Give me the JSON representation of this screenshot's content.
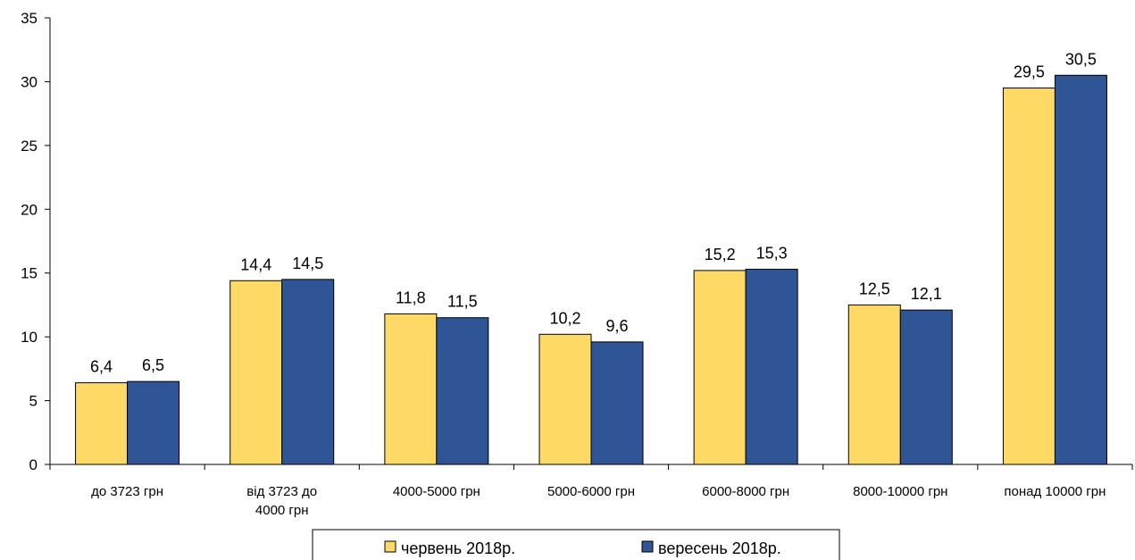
{
  "chart_data": {
    "type": "bar",
    "categories": [
      [
        "до 3723 грн"
      ],
      [
        "від 3723 до",
        "4000 грн"
      ],
      [
        "4000-5000 грн"
      ],
      [
        "5000-6000 грн"
      ],
      [
        "6000-8000 грн"
      ],
      [
        "8000-10000 грн"
      ],
      [
        "понад 10000 грн"
      ]
    ],
    "series": [
      {
        "name": "червень 2018р.",
        "color": "#FFD966",
        "values": [
          6.4,
          14.4,
          11.8,
          10.2,
          15.2,
          12.5,
          29.5
        ],
        "labels": [
          "6,4",
          "14,4",
          "11,8",
          "10,2",
          "15,2",
          "12,5",
          "29,5"
        ]
      },
      {
        "name": "вересень 2018р.",
        "color": "#2F5597",
        "values": [
          6.5,
          14.5,
          11.5,
          9.6,
          15.3,
          12.1,
          30.5
        ],
        "labels": [
          "6,5",
          "14,5",
          "11,5",
          "9,6",
          "15,3",
          "12,1",
          "30,5"
        ]
      }
    ],
    "ylim": [
      0,
      35
    ],
    "yticks": [
      0,
      5,
      10,
      15,
      20,
      25,
      30,
      35
    ],
    "grid": false,
    "legend": "bottom-center",
    "title": "",
    "xlabel": "",
    "ylabel": ""
  }
}
